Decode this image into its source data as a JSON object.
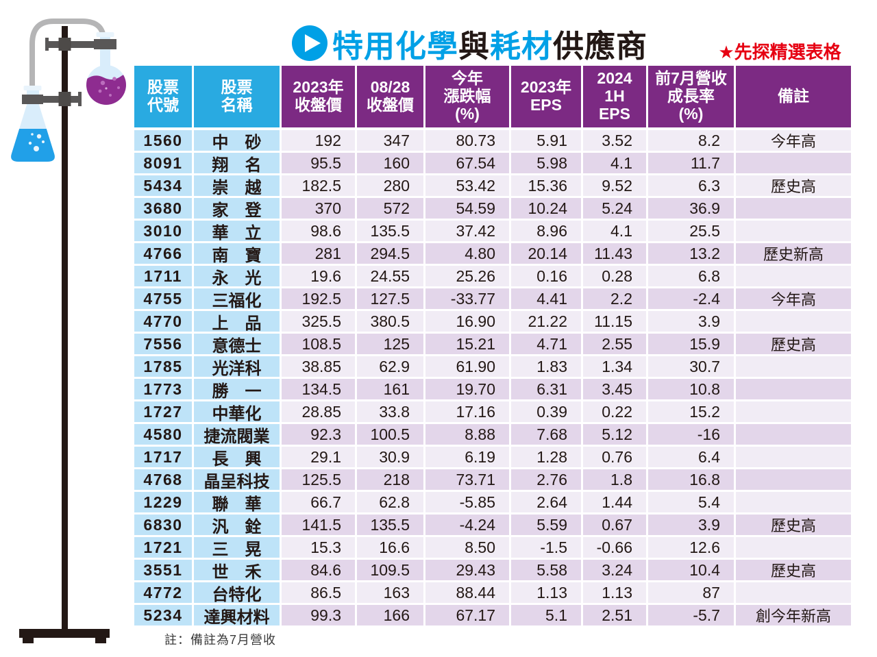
{
  "title": {
    "segments": [
      {
        "text": "特用化學",
        "color": "#00a0e6"
      },
      {
        "text": "與",
        "color": "#231815"
      },
      {
        "text": "耗材",
        "color": "#00a0e6"
      },
      {
        "text": "供應商",
        "color": "#231815"
      }
    ],
    "icon": "play-circle-icon"
  },
  "badge": "★先探精選表格",
  "footnote": "註：備註為7月營收",
  "colors": {
    "title_cyan": "#00a0e6",
    "badge_red": "#e60012",
    "header_cyan": "#29aae1",
    "header_purple": "#7c2a83",
    "code_col_blue": "#bee3f8",
    "row_light": "#f1ecf5",
    "row_dark": "#e3d6ea",
    "flask_blue_liquid": "#21a0e8",
    "flask_purple_liquid": "#8e2c90"
  },
  "table": {
    "headers": [
      "股票\n代號",
      "股票\n名稱",
      "2023年\n收盤價",
      "08/28\n收盤價",
      "今年\n漲跌幅\n(%)",
      "2023年\nEPS",
      "2024\n1H\nEPS",
      "前7月營收\n成長率\n(%)",
      "備註"
    ],
    "rows": [
      {
        "code": "1560",
        "name": "中　砂",
        "close_2023": "192",
        "close_0828": "347",
        "ytd_change_pct": "80.73",
        "eps_2023": "5.91",
        "eps_2024_1h": "3.52",
        "rev_growth_pct": "8.2",
        "note": "今年高"
      },
      {
        "code": "8091",
        "name": "翔　名",
        "close_2023": "95.5",
        "close_0828": "160",
        "ytd_change_pct": "67.54",
        "eps_2023": "5.98",
        "eps_2024_1h": "4.1",
        "rev_growth_pct": "11.7",
        "note": ""
      },
      {
        "code": "5434",
        "name": "崇　越",
        "close_2023": "182.5",
        "close_0828": "280",
        "ytd_change_pct": "53.42",
        "eps_2023": "15.36",
        "eps_2024_1h": "9.52",
        "rev_growth_pct": "6.3",
        "note": "歷史高"
      },
      {
        "code": "3680",
        "name": "家　登",
        "close_2023": "370",
        "close_0828": "572",
        "ytd_change_pct": "54.59",
        "eps_2023": "10.24",
        "eps_2024_1h": "5.24",
        "rev_growth_pct": "36.9",
        "note": ""
      },
      {
        "code": "3010",
        "name": "華　立",
        "close_2023": "98.6",
        "close_0828": "135.5",
        "ytd_change_pct": "37.42",
        "eps_2023": "8.96",
        "eps_2024_1h": "4.1",
        "rev_growth_pct": "25.5",
        "note": ""
      },
      {
        "code": "4766",
        "name": "南　寶",
        "close_2023": "281",
        "close_0828": "294.5",
        "ytd_change_pct": "4.80",
        "eps_2023": "20.14",
        "eps_2024_1h": "11.43",
        "rev_growth_pct": "13.2",
        "note": "歷史新高"
      },
      {
        "code": "1711",
        "name": "永　光",
        "close_2023": "19.6",
        "close_0828": "24.55",
        "ytd_change_pct": "25.26",
        "eps_2023": "0.16",
        "eps_2024_1h": "0.28",
        "rev_growth_pct": "6.8",
        "note": ""
      },
      {
        "code": "4755",
        "name": "三福化",
        "close_2023": "192.5",
        "close_0828": "127.5",
        "ytd_change_pct": "-33.77",
        "eps_2023": "4.41",
        "eps_2024_1h": "2.2",
        "rev_growth_pct": "-2.4",
        "note": "今年高"
      },
      {
        "code": "4770",
        "name": "上　品",
        "close_2023": "325.5",
        "close_0828": "380.5",
        "ytd_change_pct": "16.90",
        "eps_2023": "21.22",
        "eps_2024_1h": "11.15",
        "rev_growth_pct": "3.9",
        "note": ""
      },
      {
        "code": "7556",
        "name": "意德士",
        "close_2023": "108.5",
        "close_0828": "125",
        "ytd_change_pct": "15.21",
        "eps_2023": "4.71",
        "eps_2024_1h": "2.55",
        "rev_growth_pct": "15.9",
        "note": "歷史高"
      },
      {
        "code": "1785",
        "name": "光洋科",
        "close_2023": "38.85",
        "close_0828": "62.9",
        "ytd_change_pct": "61.90",
        "eps_2023": "1.83",
        "eps_2024_1h": "1.34",
        "rev_growth_pct": "30.7",
        "note": ""
      },
      {
        "code": "1773",
        "name": "勝　一",
        "close_2023": "134.5",
        "close_0828": "161",
        "ytd_change_pct": "19.70",
        "eps_2023": "6.31",
        "eps_2024_1h": "3.45",
        "rev_growth_pct": "10.8",
        "note": ""
      },
      {
        "code": "1727",
        "name": "中華化",
        "close_2023": "28.85",
        "close_0828": "33.8",
        "ytd_change_pct": "17.16",
        "eps_2023": "0.39",
        "eps_2024_1h": "0.22",
        "rev_growth_pct": "15.2",
        "note": ""
      },
      {
        "code": "4580",
        "name": "捷流閥業",
        "close_2023": "92.3",
        "close_0828": "100.5",
        "ytd_change_pct": "8.88",
        "eps_2023": "7.68",
        "eps_2024_1h": "5.12",
        "rev_growth_pct": "-16",
        "note": ""
      },
      {
        "code": "1717",
        "name": "長　興",
        "close_2023": "29.1",
        "close_0828": "30.9",
        "ytd_change_pct": "6.19",
        "eps_2023": "1.28",
        "eps_2024_1h": "0.76",
        "rev_growth_pct": "6.4",
        "note": ""
      },
      {
        "code": "4768",
        "name": "晶呈科技",
        "close_2023": "125.5",
        "close_0828": "218",
        "ytd_change_pct": "73.71",
        "eps_2023": "2.76",
        "eps_2024_1h": "1.8",
        "rev_growth_pct": "16.8",
        "note": ""
      },
      {
        "code": "1229",
        "name": "聯　華",
        "close_2023": "66.7",
        "close_0828": "62.8",
        "ytd_change_pct": "-5.85",
        "eps_2023": "2.64",
        "eps_2024_1h": "1.44",
        "rev_growth_pct": "5.4",
        "note": ""
      },
      {
        "code": "6830",
        "name": "汎　銓",
        "close_2023": "141.5",
        "close_0828": "135.5",
        "ytd_change_pct": "-4.24",
        "eps_2023": "5.59",
        "eps_2024_1h": "0.67",
        "rev_growth_pct": "3.9",
        "note": "歷史高"
      },
      {
        "code": "1721",
        "name": "三　晃",
        "close_2023": "15.3",
        "close_0828": "16.6",
        "ytd_change_pct": "8.50",
        "eps_2023": "-1.5",
        "eps_2024_1h": "-0.66",
        "rev_growth_pct": "12.6",
        "note": ""
      },
      {
        "code": "3551",
        "name": "世　禾",
        "close_2023": "84.6",
        "close_0828": "109.5",
        "ytd_change_pct": "29.43",
        "eps_2023": "5.58",
        "eps_2024_1h": "3.24",
        "rev_growth_pct": "10.4",
        "note": "歷史高"
      },
      {
        "code": "4772",
        "name": "台特化",
        "close_2023": "86.5",
        "close_0828": "163",
        "ytd_change_pct": "88.44",
        "eps_2023": "1.13",
        "eps_2024_1h": "1.13",
        "rev_growth_pct": "87",
        "note": ""
      },
      {
        "code": "5234",
        "name": "達興材料",
        "close_2023": "99.3",
        "close_0828": "166",
        "ytd_change_pct": "67.17",
        "eps_2023": "5.1",
        "eps_2024_1h": "2.51",
        "rev_growth_pct": "-5.7",
        "note": "創今年新高"
      }
    ]
  }
}
